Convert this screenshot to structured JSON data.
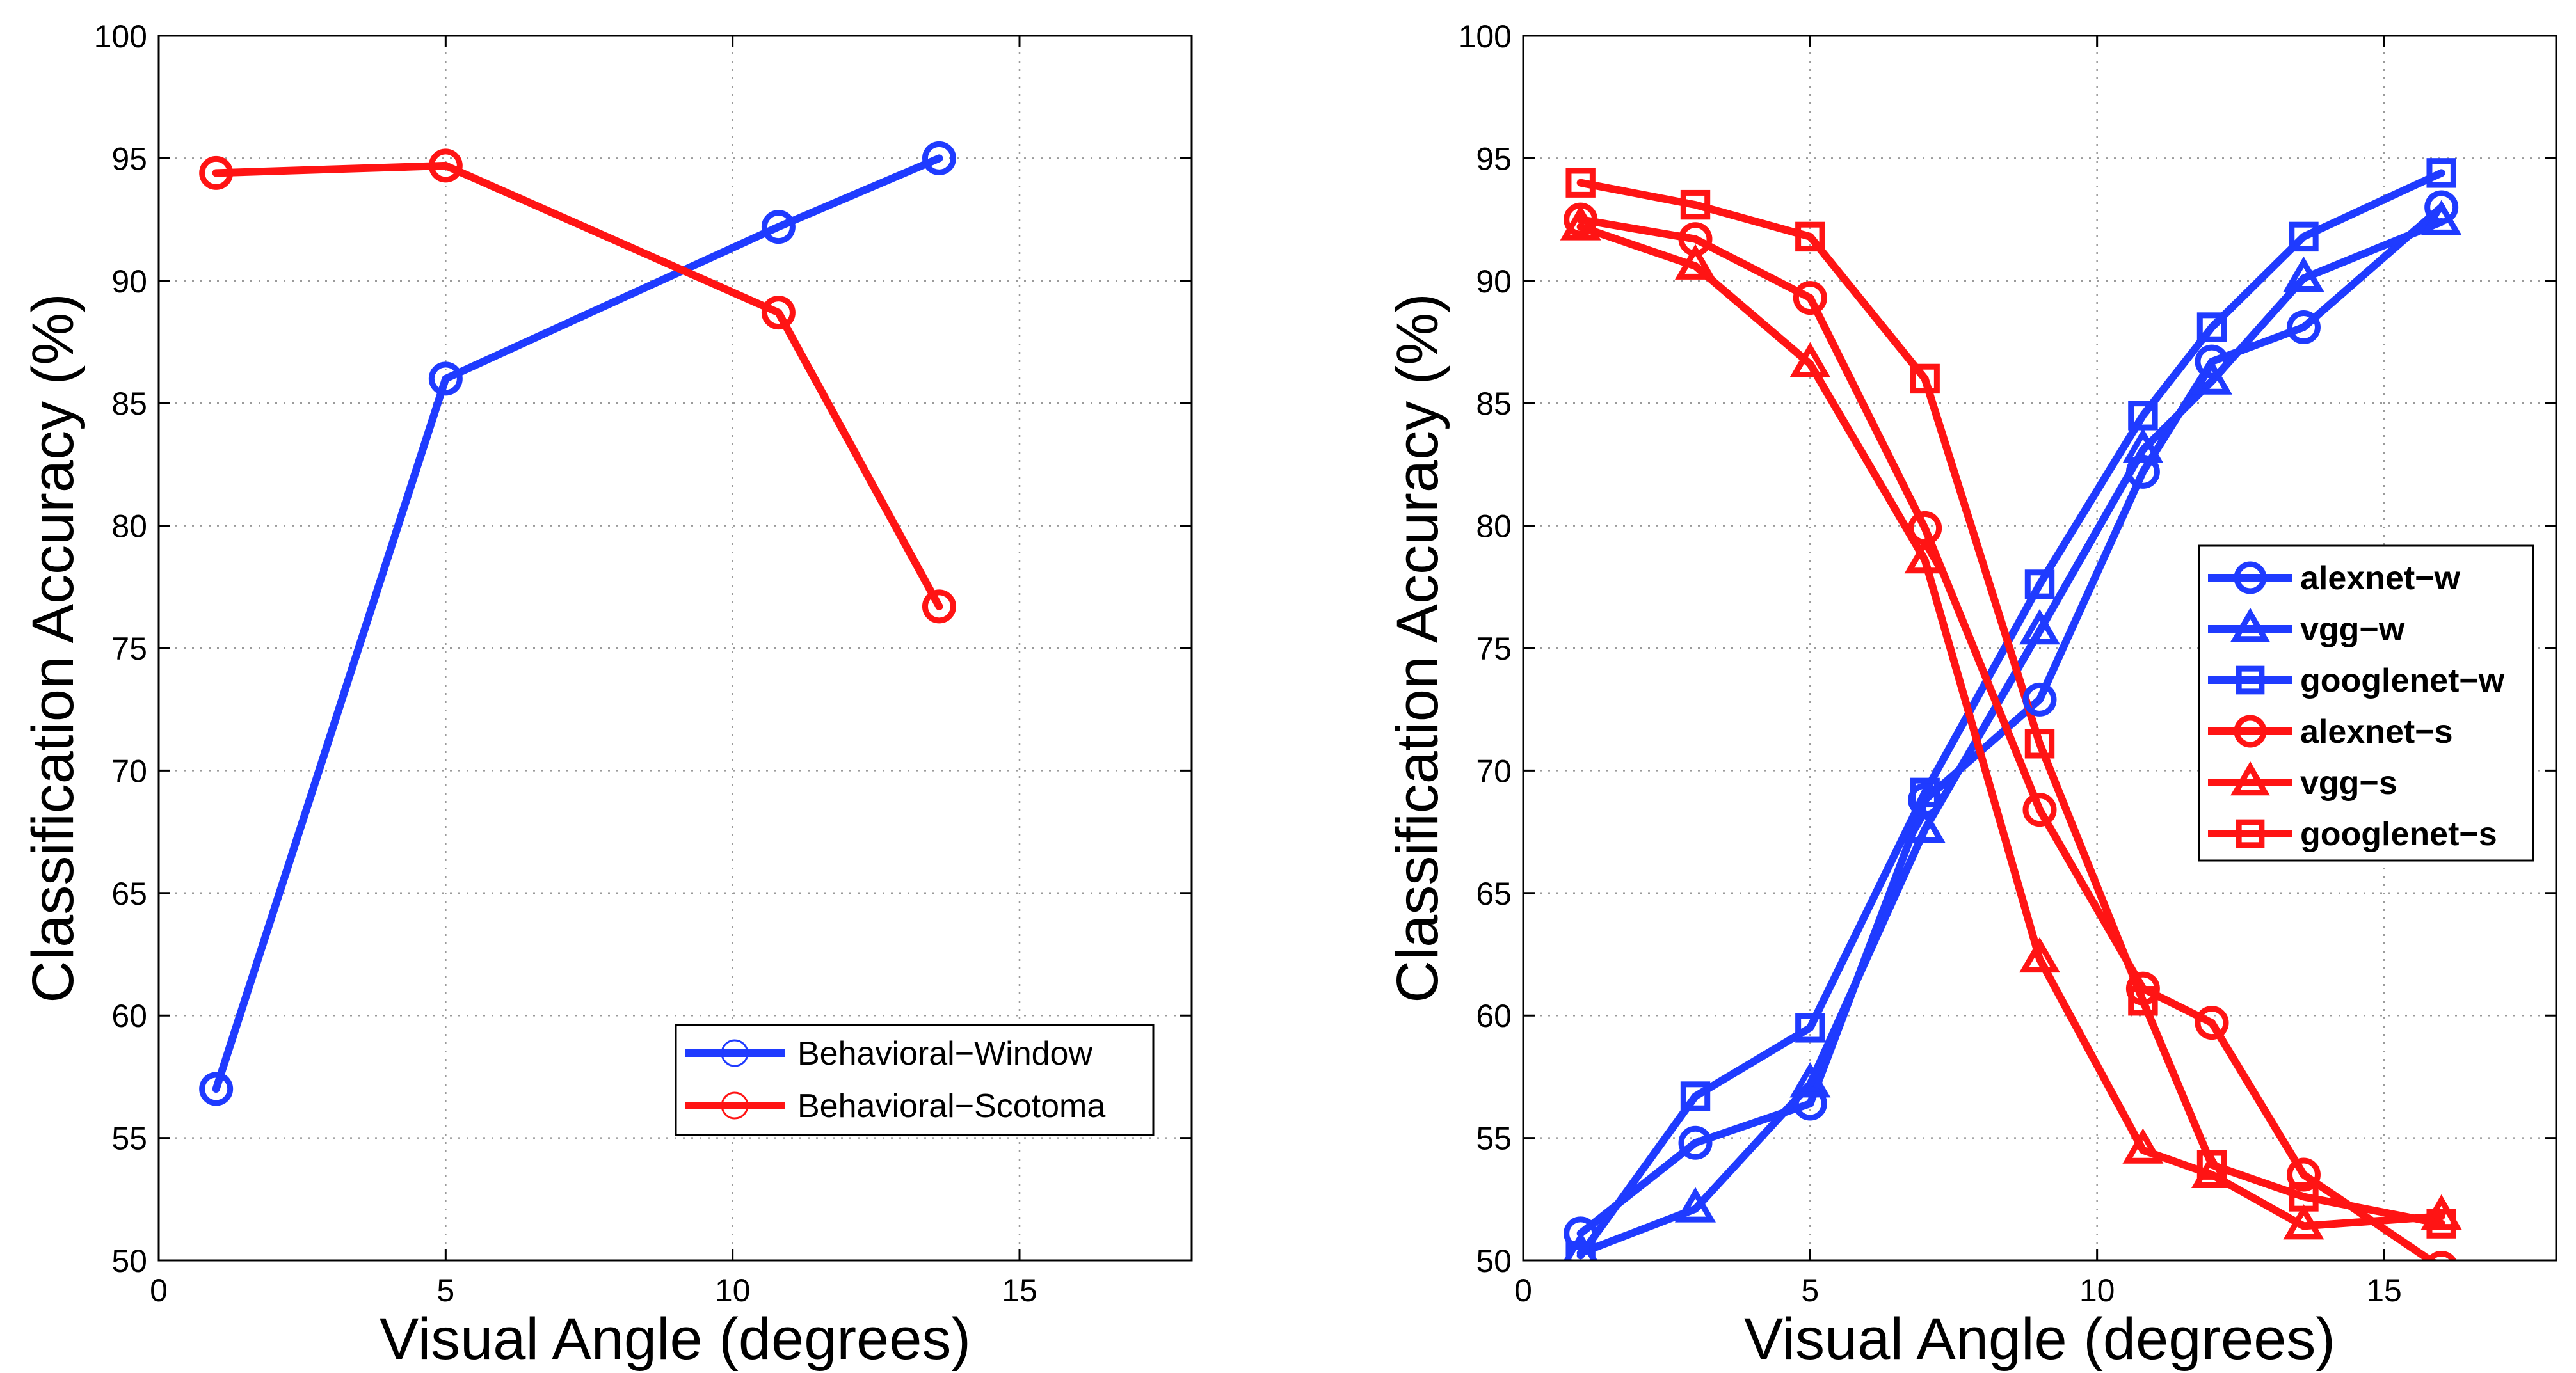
{
  "colors": {
    "window": "#1f3bff",
    "scotoma": "#ff1414"
  },
  "chart_data": [
    {
      "type": "line",
      "xlabel": "Visual Angle (degrees)",
      "ylabel": "Classification Accuracy (%)",
      "xlim": [
        0,
        18
      ],
      "ylim": [
        50,
        100
      ],
      "xticks": [
        0,
        5,
        10,
        15
      ],
      "yticks": [
        50,
        55,
        60,
        65,
        70,
        75,
        80,
        85,
        90,
        95,
        100
      ],
      "grid": true,
      "legend_position": "bottom-right",
      "series": [
        {
          "name": "Behavioral−Window",
          "color_key": "window",
          "marker": "circle",
          "x": [
            1,
            5,
            10.8,
            13.6
          ],
          "y": [
            57.0,
            86.0,
            92.2,
            95.0
          ]
        },
        {
          "name": "Behavioral−Scotoma",
          "color_key": "scotoma",
          "marker": "circle",
          "x": [
            1,
            5,
            10.8,
            13.6
          ],
          "y": [
            94.4,
            94.7,
            88.7,
            76.7
          ]
        }
      ]
    },
    {
      "type": "line",
      "xlabel": "Visual Angle (degrees)",
      "ylabel": "Classification Accuracy (%)",
      "xlim": [
        0,
        18
      ],
      "ylim": [
        50,
        100
      ],
      "xticks": [
        0,
        5,
        10,
        15
      ],
      "yticks": [
        50,
        55,
        60,
        65,
        70,
        75,
        80,
        85,
        90,
        95,
        100
      ],
      "grid": true,
      "legend_position": "right",
      "series": [
        {
          "name": "alexnet−w",
          "color_key": "window",
          "marker": "circle",
          "x": [
            1,
            3,
            5,
            7,
            9,
            10.8,
            12,
            13.6,
            16
          ],
          "y": [
            51.1,
            54.8,
            56.4,
            68.8,
            72.9,
            82.2,
            86.7,
            88.1,
            93.0
          ]
        },
        {
          "name": "vgg−w",
          "color_key": "window",
          "marker": "triangle",
          "x": [
            1,
            3,
            5,
            7,
            9,
            10.8,
            12,
            13.6,
            16
          ],
          "y": [
            50.3,
            52.1,
            57.2,
            67.6,
            75.7,
            83.1,
            85.9,
            90.1,
            92.4
          ]
        },
        {
          "name": "googlenet−w",
          "color_key": "window",
          "marker": "square",
          "x": [
            1,
            3,
            5,
            7,
            9,
            10.8,
            12,
            13.6,
            16
          ],
          "y": [
            50.2,
            56.7,
            59.5,
            69.1,
            77.6,
            84.5,
            88.1,
            91.8,
            94.4
          ]
        },
        {
          "name": "alexnet−s",
          "color_key": "scotoma",
          "marker": "circle",
          "x": [
            1,
            3,
            5,
            7,
            9,
            10.8,
            12,
            13.6,
            16
          ],
          "y": [
            92.5,
            91.7,
            89.3,
            79.9,
            68.4,
            61.1,
            59.7,
            53.5,
            49.7
          ]
        },
        {
          "name": "vgg−s",
          "color_key": "scotoma",
          "marker": "triangle",
          "x": [
            1,
            3,
            5,
            7,
            9,
            10.8,
            12,
            13.6,
            16
          ],
          "y": [
            92.2,
            90.6,
            86.6,
            78.6,
            62.3,
            54.5,
            53.5,
            51.4,
            51.8
          ]
        },
        {
          "name": "googlenet−s",
          "color_key": "scotoma",
          "marker": "square",
          "x": [
            1,
            3,
            5,
            7,
            9,
            10.8,
            12,
            13.6,
            16
          ],
          "y": [
            94.0,
            93.1,
            91.8,
            86.0,
            71.1,
            60.6,
            53.9,
            52.6,
            51.5
          ]
        }
      ]
    }
  ]
}
